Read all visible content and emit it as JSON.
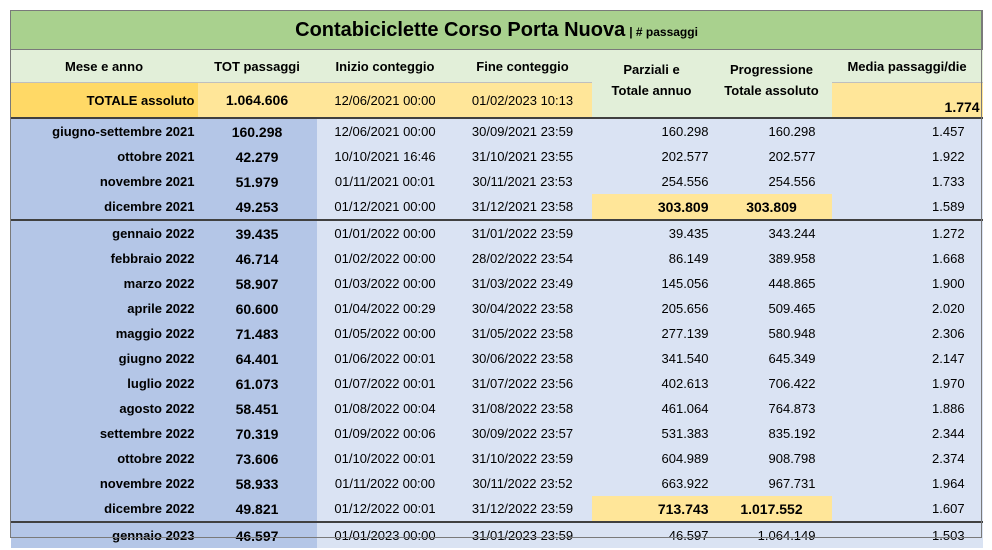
{
  "title": {
    "main": "Contabiciclette Corso Porta Nuova",
    "sub": "| # passaggi"
  },
  "headers": {
    "month": "Mese e anno",
    "tot": "TOT passaggi",
    "start": "Inizio conteggio",
    "end": "Fine conteggio",
    "partial_line1": "Parziali e",
    "partial_line2": "Totale annuo",
    "prog_line1": "Progressione",
    "prog_line2": "Totale assoluto",
    "avg": "Media passaggi/die"
  },
  "total": {
    "label": "TOTALE assoluto",
    "tot": "1.064.606",
    "start": "12/06/2021 00:00",
    "end": "01/02/2023 10:13",
    "avg": "1.774"
  },
  "rows": [
    {
      "month": "giugno-settembre 2021",
      "tot": "160.298",
      "start": "12/06/2021 00:00",
      "end": "30/09/2021 23:59",
      "partial": "160.298",
      "prog": "160.298",
      "avg": "1.457"
    },
    {
      "month": "ottobre 2021",
      "tot": "42.279",
      "start": "10/10/2021 16:46",
      "end": "31/10/2021 23:55",
      "partial": "202.577",
      "prog": "202.577",
      "avg": "1.922"
    },
    {
      "month": "novembre 2021",
      "tot": "51.979",
      "start": "01/11/2021 00:01",
      "end": "30/11/2021 23:53",
      "partial": "254.556",
      "prog": "254.556",
      "avg": "1.733"
    },
    {
      "month": "dicembre 2021",
      "tot": "49.253",
      "start": "01/12/2021 00:00",
      "end": "31/12/2021 23:58",
      "partial": "303.809",
      "prog": "303.809",
      "avg": "1.589"
    },
    {
      "month": "gennaio 2022",
      "tot": "39.435",
      "start": "01/01/2022 00:00",
      "end": "31/01/2022 23:59",
      "partial": "39.435",
      "prog": "343.244",
      "avg": "1.272"
    },
    {
      "month": "febbraio 2022",
      "tot": "46.714",
      "start": "01/02/2022 00:00",
      "end": "28/02/2022 23:54",
      "partial": "86.149",
      "prog": "389.958",
      "avg": "1.668"
    },
    {
      "month": "marzo 2022",
      "tot": "58.907",
      "start": "01/03/2022 00:00",
      "end": "31/03/2022 23:49",
      "partial": "145.056",
      "prog": "448.865",
      "avg": "1.900"
    },
    {
      "month": "aprile 2022",
      "tot": "60.600",
      "start": "01/04/2022 00:29",
      "end": "30/04/2022 23:58",
      "partial": "205.656",
      "prog": "509.465",
      "avg": "2.020"
    },
    {
      "month": "maggio 2022",
      "tot": "71.483",
      "start": "01/05/2022 00:00",
      "end": "31/05/2022 23:58",
      "partial": "277.139",
      "prog": "580.948",
      "avg": "2.306"
    },
    {
      "month": "giugno 2022",
      "tot": "64.401",
      "start": "01/06/2022 00:01",
      "end": "30/06/2022 23:58",
      "partial": "341.540",
      "prog": "645.349",
      "avg": "2.147"
    },
    {
      "month": "luglio 2022",
      "tot": "61.073",
      "start": "01/07/2022 00:01",
      "end": "31/07/2022 23:56",
      "partial": "402.613",
      "prog": "706.422",
      "avg": "1.970"
    },
    {
      "month": "agosto 2022",
      "tot": "58.451",
      "start": "01/08/2022 00:04",
      "end": "31/08/2022 23:58",
      "partial": "461.064",
      "prog": "764.873",
      "avg": "1.886"
    },
    {
      "month": "settembre 2022",
      "tot": "70.319",
      "start": "01/09/2022 00:06",
      "end": "30/09/2022 23:57",
      "partial": "531.383",
      "prog": "835.192",
      "avg": "2.344"
    },
    {
      "month": "ottobre 2022",
      "tot": "73.606",
      "start": "01/10/2022 00:01",
      "end": "31/10/2022 23:59",
      "partial": "604.989",
      "prog": "908.798",
      "avg": "2.374"
    },
    {
      "month": "novembre 2022",
      "tot": "58.933",
      "start": "01/11/2022 00:00",
      "end": "30/11/2022 23:52",
      "partial": "663.922",
      "prog": "967.731",
      "avg": "1.964"
    },
    {
      "month": "dicembre 2022",
      "tot": "49.821",
      "start": "01/12/2022 00:01",
      "end": "31/12/2022 23:59",
      "partial": "713.743",
      "prog": "1.017.552",
      "avg": "1.607"
    },
    {
      "month": "gennaio 2023",
      "tot": "46.597",
      "start": "01/01/2023 00:00",
      "end": "31/01/2023 23:59",
      "partial": "46.597",
      "prog": "1.064.149",
      "avg": "1.503"
    }
  ],
  "colors": {
    "title_bg": "#a9d18e",
    "header_bg": "#e2efd9",
    "total_label_bg": "#ffd966",
    "total_bg": "#ffe699",
    "month_col_bg": "#b4c6e7",
    "data_bg": "#dae3f3",
    "year_total_highlight": "#ffe699"
  }
}
